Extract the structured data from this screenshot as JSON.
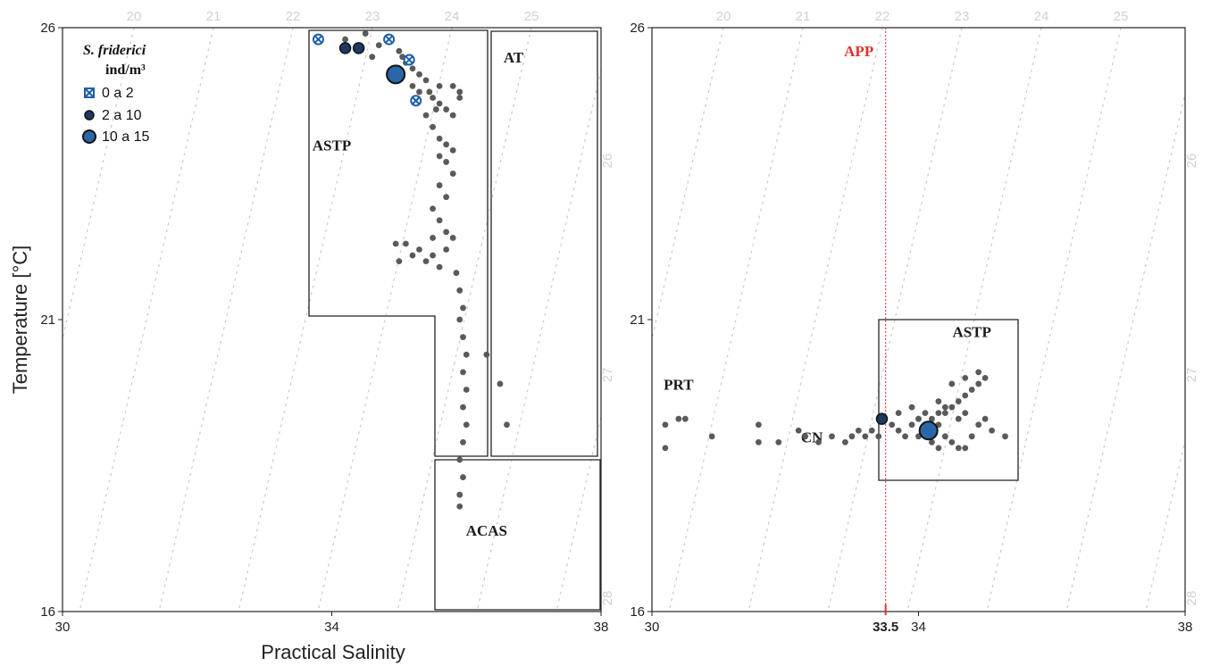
{
  "chart_data": [
    {
      "type": "scatter",
      "panel": "left",
      "xlabel": "Practical Salinity",
      "ylabel": "Temperature [°C]",
      "xlim": [
        30,
        38
      ],
      "ylim": [
        16,
        26
      ],
      "x_ticks": [
        "30",
        "34",
        "38"
      ],
      "y_ticks": [
        "16",
        "21",
        "26"
      ],
      "isopycnals": {
        "top": [
          {
            "label": "20",
            "sigma": 20
          },
          {
            "label": "21",
            "sigma": 21
          },
          {
            "label": "22",
            "sigma": 22
          },
          {
            "label": "23",
            "sigma": 23
          },
          {
            "label": "24",
            "sigma": 24
          },
          {
            "label": "25",
            "sigma": 25
          }
        ],
        "right": [
          {
            "label": "26",
            "sigma": 26
          },
          {
            "label": "27",
            "sigma": 27
          },
          {
            "label": "28",
            "sigma": 28
          }
        ],
        "extra": [
          19,
          26,
          27,
          28,
          29
        ]
      },
      "water_masses": [
        {
          "label": "ASTP",
          "label_at": [
            34.0,
            23.9
          ]
        },
        {
          "label": "AT",
          "label_at": [
            36.7,
            25.4
          ]
        },
        {
          "label": "ACAS",
          "label_at": [
            36.3,
            17.3
          ]
        }
      ],
      "legend": {
        "title": "S. friderici",
        "unit": "ind/m³",
        "items": [
          {
            "label": "0 a 2",
            "marker": "cross"
          },
          {
            "label": "2 a 10",
            "marker": "small"
          },
          {
            "label": "10 a 15",
            "marker": "large"
          }
        ]
      },
      "density_points": [
        {
          "s": 33.8,
          "t": 25.8,
          "class": "0 a 2"
        },
        {
          "s": 34.85,
          "t": 25.8,
          "class": "0 a 2"
        },
        {
          "s": 35.15,
          "t": 25.45,
          "class": "0 a 2"
        },
        {
          "s": 35.25,
          "t": 24.75,
          "class": "0 a 2"
        },
        {
          "s": 34.2,
          "t": 25.65,
          "class": "2 a 10"
        },
        {
          "s": 34.4,
          "t": 25.65,
          "class": "2 a 10"
        },
        {
          "s": 34.95,
          "t": 25.2,
          "class": "10 a 15"
        }
      ],
      "profile_points": [
        [
          35.0,
          25.6
        ],
        [
          35.1,
          25.4
        ],
        [
          35.2,
          25.3
        ],
        [
          35.3,
          25.2
        ],
        [
          35.2,
          25.0
        ],
        [
          35.4,
          25.1
        ],
        [
          35.6,
          25.0
        ],
        [
          35.8,
          25.0
        ],
        [
          35.9,
          24.9
        ],
        [
          35.5,
          24.8
        ],
        [
          35.6,
          24.7
        ],
        [
          35.7,
          24.6
        ],
        [
          35.8,
          24.5
        ],
        [
          35.9,
          24.8
        ],
        [
          35.4,
          24.5
        ],
        [
          35.5,
          24.3
        ],
        [
          35.6,
          24.1
        ],
        [
          35.7,
          24.0
        ],
        [
          35.8,
          23.9
        ],
        [
          35.6,
          23.8
        ],
        [
          35.7,
          23.7
        ],
        [
          35.8,
          23.5
        ],
        [
          35.6,
          23.3
        ],
        [
          35.7,
          23.1
        ],
        [
          35.5,
          22.9
        ],
        [
          35.6,
          22.7
        ],
        [
          35.7,
          22.5
        ],
        [
          35.5,
          22.4
        ],
        [
          35.3,
          22.2
        ],
        [
          35.4,
          22.0
        ],
        [
          35.2,
          22.1
        ],
        [
          35.1,
          22.3
        ],
        [
          35.0,
          22.0
        ],
        [
          34.95,
          22.3
        ],
        [
          35.5,
          22.1
        ],
        [
          35.6,
          21.9
        ],
        [
          35.7,
          22.2
        ],
        [
          35.8,
          22.4
        ],
        [
          35.85,
          21.8
        ],
        [
          35.9,
          21.5
        ],
        [
          35.95,
          21.2
        ],
        [
          35.9,
          21.0
        ],
        [
          35.95,
          20.7
        ],
        [
          36.0,
          20.4
        ],
        [
          35.95,
          20.1
        ],
        [
          36.0,
          19.8
        ],
        [
          35.95,
          19.5
        ],
        [
          36.0,
          19.2
        ],
        [
          35.95,
          18.9
        ],
        [
          35.9,
          18.6
        ],
        [
          35.95,
          18.3
        ],
        [
          35.9,
          18.0
        ],
        [
          35.9,
          17.8
        ],
        [
          36.3,
          20.4
        ],
        [
          36.5,
          19.9
        ],
        [
          36.6,
          19.2
        ],
        [
          34.2,
          25.8
        ],
        [
          34.5,
          25.9
        ],
        [
          34.7,
          25.7
        ],
        [
          34.6,
          25.5
        ],
        [
          35.05,
          25.5
        ],
        [
          35.3,
          24.9
        ],
        [
          35.45,
          24.9
        ],
        [
          35.55,
          24.6
        ]
      ]
    },
    {
      "type": "scatter",
      "panel": "right",
      "xlabel": "",
      "ylabel": "",
      "xlim": [
        30,
        38
      ],
      "ylim": [
        16,
        26
      ],
      "x_ticks": [
        "30",
        "34",
        "38"
      ],
      "y_ticks": [
        "16",
        "21",
        "26"
      ],
      "extra_x_tick": "33.5",
      "reference_line": {
        "label": "APP",
        "x": 33.5
      },
      "water_masses": [
        {
          "label": "ASTP",
          "label_at": [
            34.8,
            20.7
          ]
        },
        {
          "label": "PRT",
          "label_at": [
            30.4,
            19.8
          ]
        },
        {
          "label": "CN",
          "label_at": [
            32.4,
            18.9
          ]
        }
      ],
      "density_points": [
        {
          "s": 33.45,
          "t": 19.3,
          "class": "2 a 10"
        },
        {
          "s": 34.15,
          "t": 19.1,
          "class": "10 a 15"
        }
      ],
      "profile_points": [
        [
          30.2,
          19.2
        ],
        [
          30.4,
          19.3
        ],
        [
          30.5,
          19.3
        ],
        [
          30.9,
          19.0
        ],
        [
          30.2,
          18.8
        ],
        [
          31.6,
          19.2
        ],
        [
          31.6,
          18.9
        ],
        [
          31.9,
          18.9
        ],
        [
          32.2,
          19.1
        ],
        [
          32.3,
          19.0
        ],
        [
          32.5,
          18.9
        ],
        [
          32.7,
          19.0
        ],
        [
          32.9,
          18.9
        ],
        [
          33.0,
          19.0
        ],
        [
          33.1,
          19.1
        ],
        [
          33.2,
          19.0
        ],
        [
          33.3,
          19.1
        ],
        [
          33.4,
          19.0
        ],
        [
          33.6,
          19.2
        ],
        [
          33.7,
          19.1
        ],
        [
          33.8,
          19.0
        ],
        [
          33.9,
          19.2
        ],
        [
          34.0,
          19.3
        ],
        [
          34.1,
          19.4
        ],
        [
          34.2,
          19.3
        ],
        [
          34.3,
          19.2
        ],
        [
          34.4,
          19.4
        ],
        [
          34.5,
          19.5
        ],
        [
          34.6,
          19.6
        ],
        [
          34.7,
          19.7
        ],
        [
          34.8,
          19.8
        ],
        [
          34.9,
          19.9
        ],
        [
          35.0,
          20.0
        ],
        [
          34.9,
          20.1
        ],
        [
          34.7,
          20.0
        ],
        [
          34.5,
          19.9
        ],
        [
          34.3,
          19.6
        ],
        [
          33.9,
          19.5
        ],
        [
          33.7,
          19.4
        ],
        [
          34.4,
          19.0
        ],
        [
          34.5,
          18.9
        ],
        [
          34.6,
          18.8
        ],
        [
          34.7,
          18.8
        ],
        [
          34.8,
          19.0
        ],
        [
          34.9,
          19.2
        ],
        [
          35.0,
          19.3
        ],
        [
          35.1,
          19.1
        ],
        [
          35.3,
          19.0
        ],
        [
          34.3,
          18.8
        ],
        [
          34.2,
          18.9
        ],
        [
          34.0,
          19.0
        ],
        [
          34.4,
          19.5
        ],
        [
          34.3,
          19.4
        ],
        [
          34.6,
          19.3
        ],
        [
          34.2,
          19.2
        ],
        [
          34.0,
          19.3
        ],
        [
          34.7,
          19.4
        ]
      ]
    }
  ]
}
